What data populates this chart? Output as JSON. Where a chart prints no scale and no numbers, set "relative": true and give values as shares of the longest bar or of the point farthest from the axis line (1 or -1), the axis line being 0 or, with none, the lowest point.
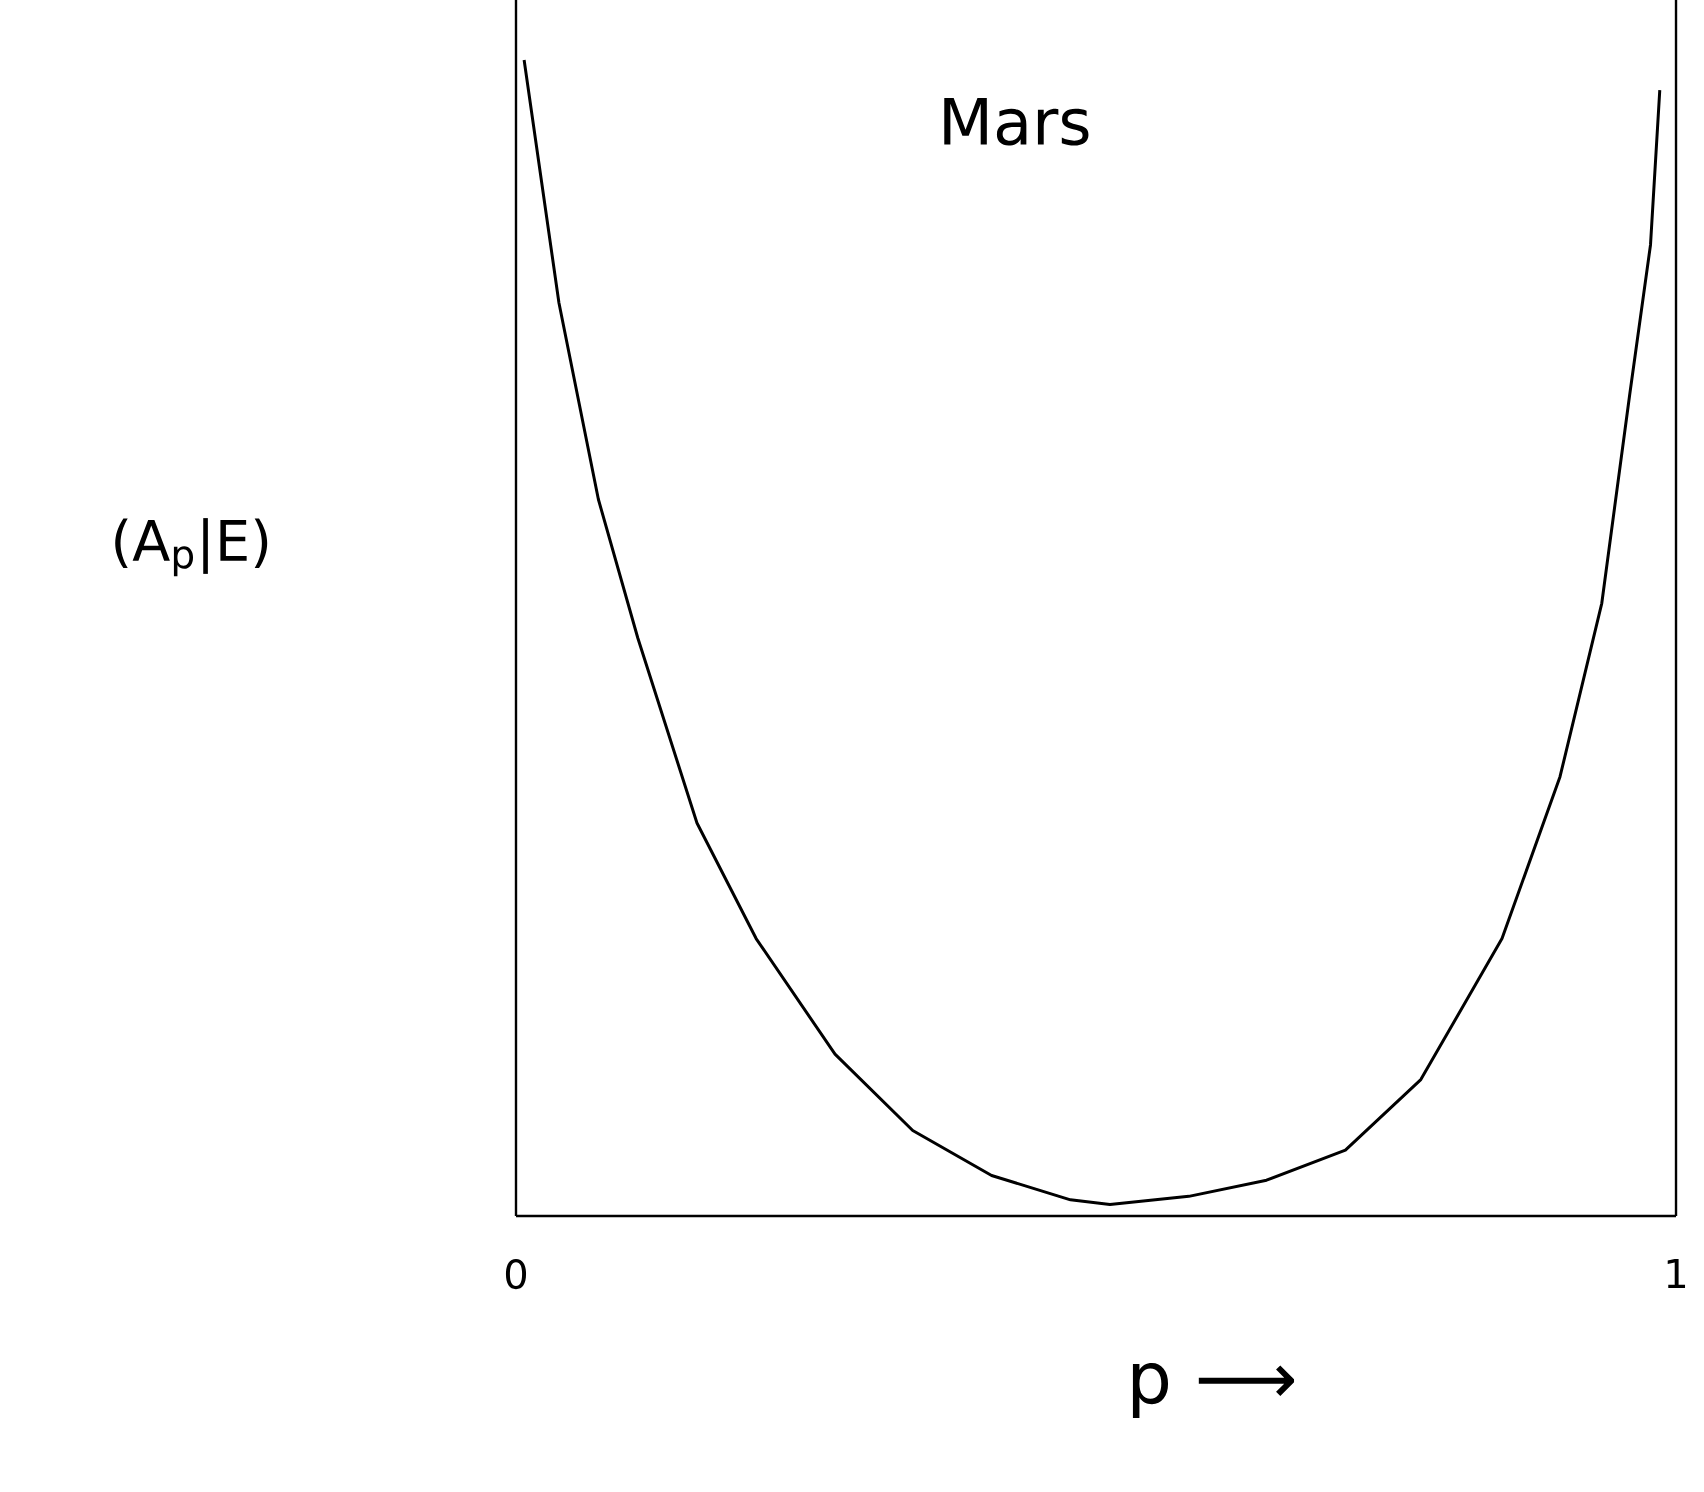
{
  "chart_data": {
    "type": "line",
    "title": "Mars",
    "xlabel": "p ⟶",
    "ylabel": "(A$_{p}$|E)",
    "relative": true,
    "color": "#000000",
    "marker": "none",
    "xlim": [
      0,
      1
    ],
    "xticks": [
      0,
      1
    ],
    "x": [
      0.007,
      0.037,
      0.071,
      0.105,
      0.156,
      0.207,
      0.275,
      0.342,
      0.41,
      0.478,
      0.512,
      0.58,
      0.647,
      0.715,
      0.78,
      0.85,
      0.9,
      0.936,
      0.96,
      0.978,
      0.986
    ],
    "values": [
      1.0,
      0.79,
      0.62,
      0.5,
      0.34,
      0.24,
      0.14,
      0.074,
      0.035,
      0.014,
      0.01,
      0.017,
      0.031,
      0.057,
      0.118,
      0.24,
      0.38,
      0.53,
      0.71,
      0.84,
      0.974
    ]
  }
}
